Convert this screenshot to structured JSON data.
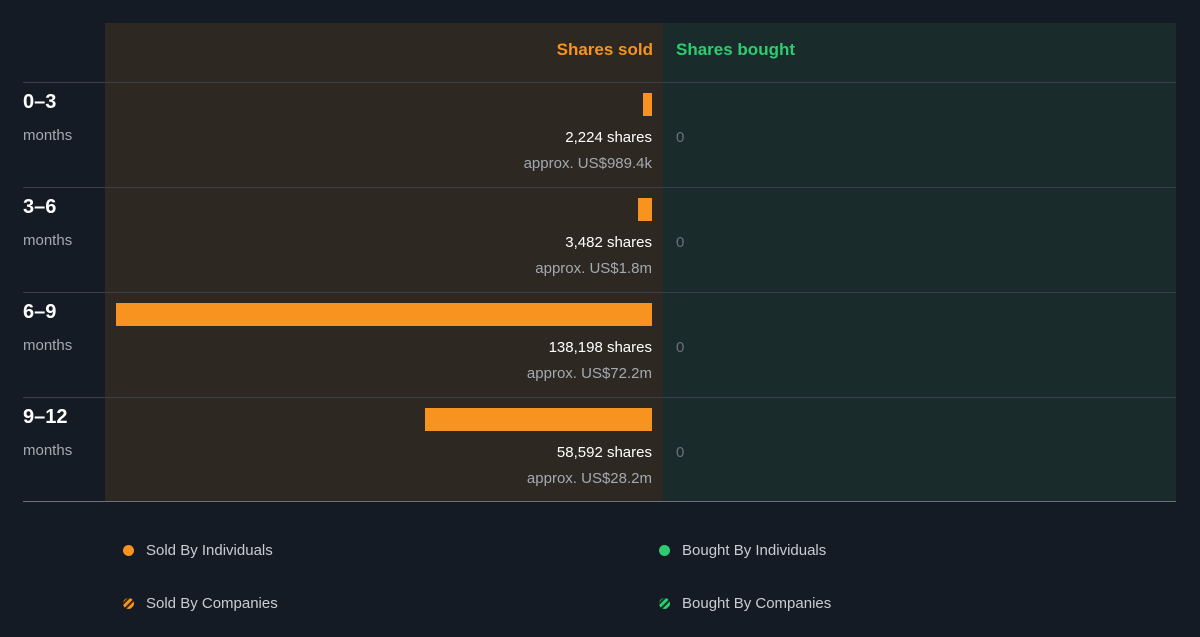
{
  "headers": {
    "sold": "Shares sold",
    "bought": "Shares bought"
  },
  "colors": {
    "sold": "#f7931e",
    "bought": "#2ecc71"
  },
  "rows": [
    {
      "period": "0–3",
      "unit": "months",
      "sold_shares_label": "2,224 shares",
      "sold_value_label": "approx. US$989.4k",
      "bought_label": "0"
    },
    {
      "period": "3–6",
      "unit": "months",
      "sold_shares_label": "3,482 shares",
      "sold_value_label": "approx. US$1.8m",
      "bought_label": "0"
    },
    {
      "period": "6–9",
      "unit": "months",
      "sold_shares_label": "138,198 shares",
      "sold_value_label": "approx. US$72.2m",
      "bought_label": "0"
    },
    {
      "period": "9–12",
      "unit": "months",
      "sold_shares_label": "58,592 shares",
      "sold_value_label": "approx. US$28.2m",
      "bought_label": "0"
    }
  ],
  "legend": {
    "sold_individuals": "Sold By Individuals",
    "bought_individuals": "Bought By Individuals",
    "sold_companies": "Sold By Companies",
    "bought_companies": "Bought By Companies"
  },
  "chart_data": {
    "type": "bar",
    "categories": [
      "0–3 months",
      "3–6 months",
      "6–9 months",
      "9–12 months"
    ],
    "series": [
      {
        "name": "Shares sold",
        "values": [
          2224,
          3482,
          138198,
          58592
        ]
      },
      {
        "name": "Shares bought",
        "values": [
          0,
          0,
          0,
          0
        ]
      }
    ],
    "sold_value_usd": [
      "US$989.4k",
      "US$1.8m",
      "US$72.2m",
      "US$28.2m"
    ],
    "orientation": "horizontal",
    "legend_position": "bottom"
  }
}
